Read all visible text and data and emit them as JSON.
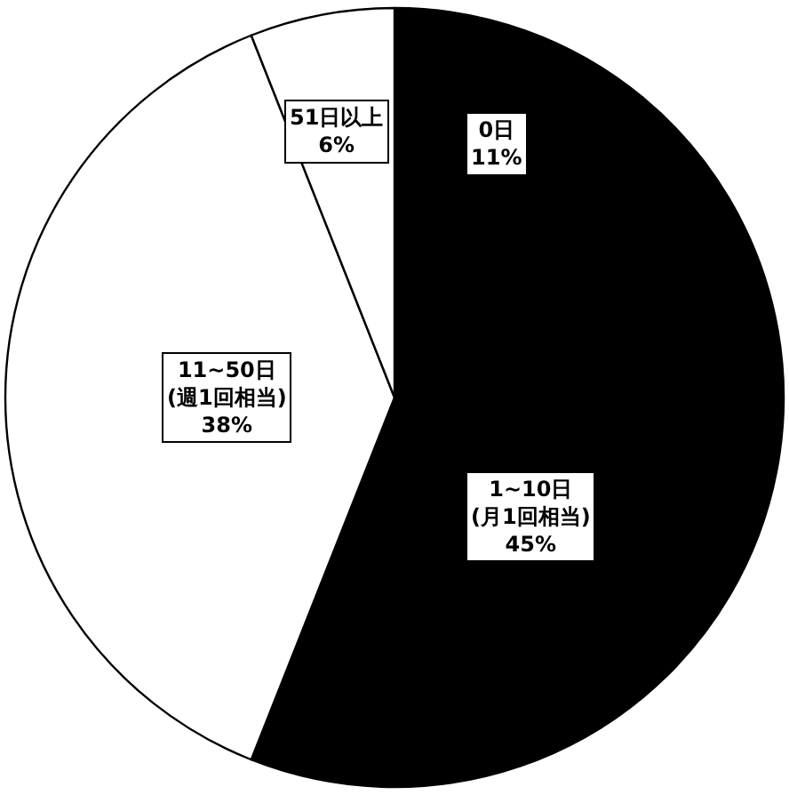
{
  "chart_data": {
    "type": "pie",
    "categories": [
      "0日",
      "1~10日\n(月1回相当)",
      "11~50日\n(週1回相当)",
      "51日以上"
    ],
    "values": [
      11,
      45,
      38,
      6
    ],
    "value_labels": [
      "11%",
      "45%",
      "38%",
      "6%"
    ],
    "colors": [
      "#000000",
      "#000000",
      "#ffffff",
      "#ffffff"
    ],
    "legend": false
  }
}
